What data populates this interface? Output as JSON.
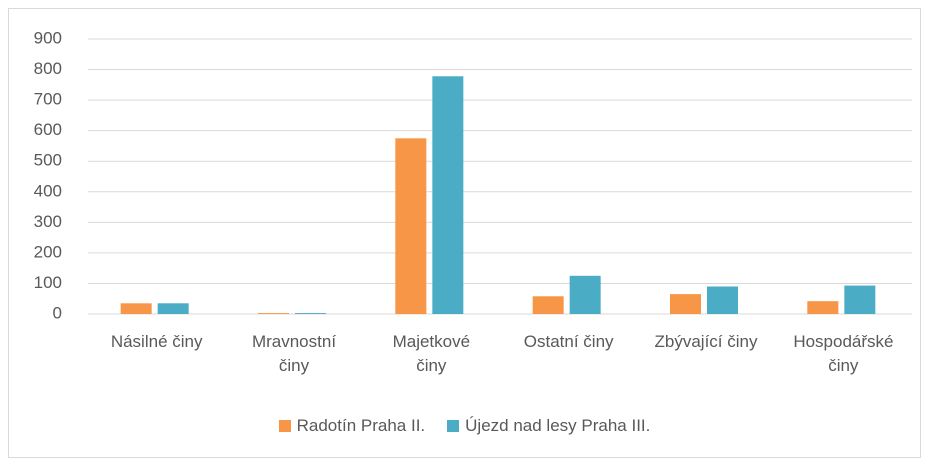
{
  "chart_data": {
    "type": "bar",
    "categories": [
      "Násilné činy",
      "Mravnostní činy",
      "Majetkové činy",
      "Ostatní činy",
      "Zbývající činy",
      "Hospodářské činy"
    ],
    "series": [
      {
        "name": "Radotín Praha II.",
        "color": "#f79646",
        "values": [
          35,
          3,
          575,
          58,
          65,
          42
        ]
      },
      {
        "name": "Újezd nad lesy Praha III.",
        "color": "#4bacc6",
        "values": [
          35,
          3,
          778,
          125,
          90,
          93
        ]
      }
    ],
    "ylim": [
      0,
      900
    ],
    "yticks": [
      0,
      100,
      200,
      300,
      400,
      500,
      600,
      700,
      800,
      900
    ],
    "grid": true,
    "legend": "bottom"
  }
}
